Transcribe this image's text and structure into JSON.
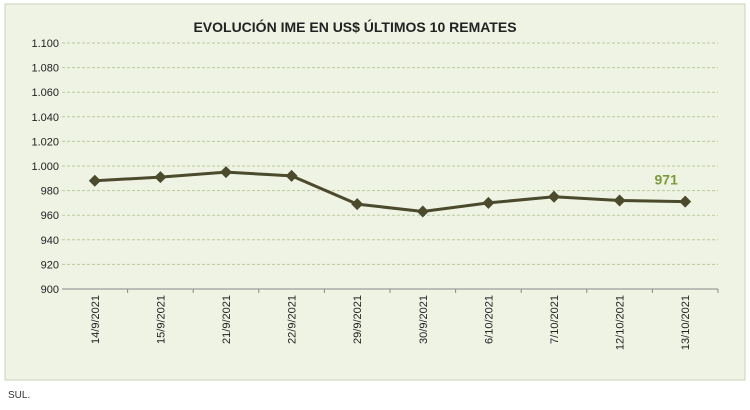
{
  "chart_data": {
    "type": "line",
    "title": "EVOLUCIÓN IME EN US$ ÚLTIMOS 10 REMATES",
    "categories": [
      "14/9/2021",
      "15/9/2021",
      "21/9/2021",
      "22/9/2021",
      "29/9/2021",
      "30/9/2021",
      "6/10/2021",
      "7/10/2021",
      "12/10/2021",
      "13/10/2021"
    ],
    "values": [
      988,
      991,
      995,
      992,
      969,
      963,
      970,
      975,
      972,
      971
    ],
    "color": "#4b4a2c",
    "ylim": [
      900,
      1100
    ],
    "yticks": [
      {
        "value": 900,
        "label": "900"
      },
      {
        "value": 920,
        "label": "920"
      },
      {
        "value": 940,
        "label": "940"
      },
      {
        "value": 960,
        "label": "960"
      },
      {
        "value": 980,
        "label": "980"
      },
      {
        "value": 1000,
        "label": "1.000"
      },
      {
        "value": 1020,
        "label": "1.020"
      },
      {
        "value": 1040,
        "label": "1.040"
      },
      {
        "value": 1060,
        "label": "1.060"
      },
      {
        "value": 1080,
        "label": "1.080"
      },
      {
        "value": 1100,
        "label": "1.100"
      }
    ],
    "grid": true
  },
  "footer": "SUL."
}
